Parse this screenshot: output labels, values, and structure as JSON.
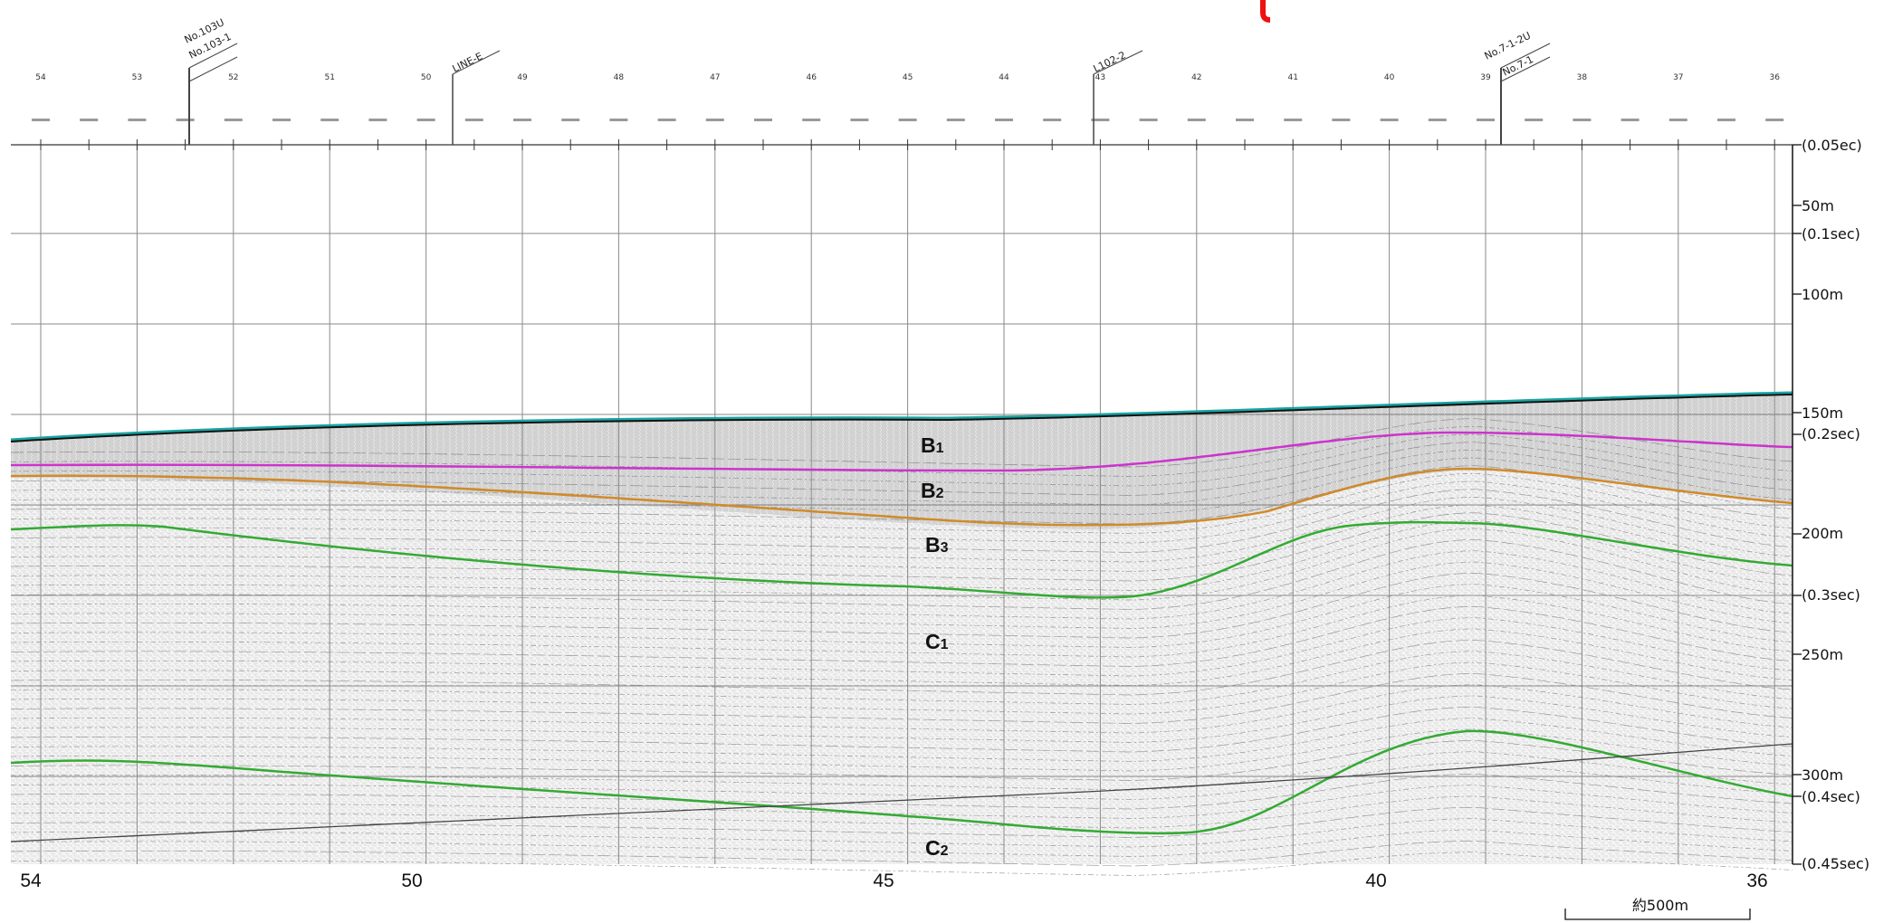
{
  "top_shotpoints": [
    "54",
    "53",
    "52",
    "51",
    "50",
    "49",
    "48",
    "47",
    "46",
    "45",
    "44",
    "43",
    "42",
    "41",
    "40",
    "39",
    "38",
    "37",
    "36"
  ],
  "bottom_shotpoints": [
    "54",
    "50",
    "45",
    "40",
    "36"
  ],
  "cross_lines": [
    {
      "id": "well-103",
      "labels": [
        "No.103U",
        "No.103-1"
      ]
    },
    {
      "id": "line-e",
      "labels": [
        "LINE-E"
      ]
    },
    {
      "id": "l102",
      "labels": [
        "L102-2"
      ]
    },
    {
      "id": "well-7",
      "labels": [
        "No.7-1-2U",
        "No.7-1"
      ]
    }
  ],
  "depth_scale": [
    {
      "id": "t005",
      "label": "(0.05ec)"
    },
    {
      "id": "d50",
      "label": "50m"
    },
    {
      "id": "t01",
      "label": "(0.1sec)"
    },
    {
      "id": "d100",
      "label": "100m"
    },
    {
      "id": "d150",
      "label": "150m"
    },
    {
      "id": "t02",
      "label": "(0.2sec)"
    },
    {
      "id": "d200",
      "label": "200m"
    },
    {
      "id": "t03",
      "label": "(0.3sec)"
    },
    {
      "id": "d250",
      "label": "250m"
    },
    {
      "id": "d300",
      "label": "300m"
    },
    {
      "id": "t04",
      "label": "(0.4sec)"
    },
    {
      "id": "t045",
      "label": "(0.45sec)"
    }
  ],
  "units": [
    {
      "id": "b1",
      "main": "B",
      "sub": "1"
    },
    {
      "id": "b2",
      "main": "B",
      "sub": "2"
    },
    {
      "id": "b3",
      "main": "B",
      "sub": "3"
    },
    {
      "id": "c1",
      "main": "C",
      "sub": "1"
    },
    {
      "id": "c2",
      "main": "C",
      "sub": "2"
    }
  ],
  "horizons": [
    {
      "id": "seafloor",
      "color": "#1aa3a3"
    },
    {
      "id": "b1-base",
      "color": "#cc33cc"
    },
    {
      "id": "b2-base",
      "color": "#d08a2a"
    },
    {
      "id": "b3-base",
      "color": "#33aa33"
    },
    {
      "id": "c1-base",
      "color": "#33aa33"
    }
  ],
  "scale_bar": {
    "label": "約500m"
  },
  "colors": {
    "marker": "#ee1111",
    "grid": "#8a8a8a"
  }
}
